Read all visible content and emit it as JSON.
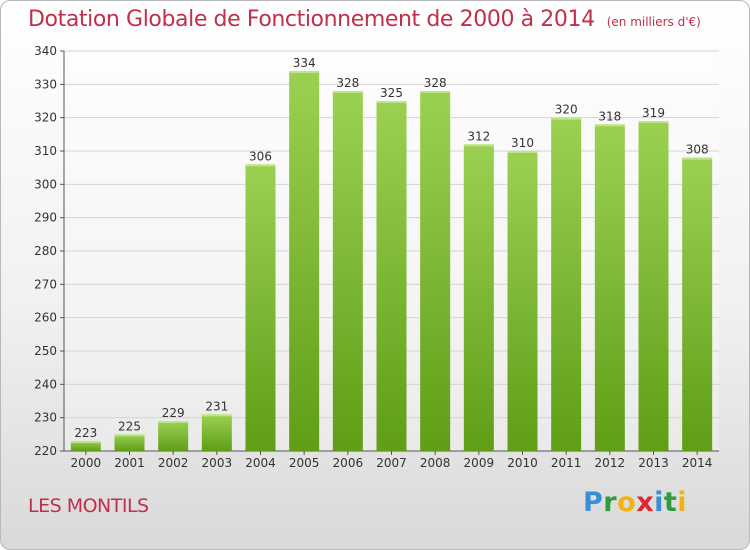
{
  "title": "Dotation Globale de Fonctionnement de 2000 à 2014",
  "unit": "(en milliers d'€)",
  "location": "LES MONTILS",
  "brand": {
    "letters": [
      {
        "ch": "P",
        "color": "#3a8ed6"
      },
      {
        "ch": "r",
        "color": "#2e9c3c"
      },
      {
        "ch": "o",
        "color": "#f2b20f"
      },
      {
        "ch": "x",
        "color": "#e0262e"
      },
      {
        "ch": "i",
        "color": "#3a8ed6"
      },
      {
        "ch": "t",
        "color": "#2e9c3c"
      },
      {
        "ch": "i",
        "color": "#f2b20f"
      }
    ]
  },
  "colors": {
    "bar_top": "#9bd152",
    "bar_bottom": "#5f9e16",
    "title": "#c0304a",
    "grid": "#d4d4d4"
  },
  "chart_data": {
    "type": "bar",
    "categories": [
      "2000",
      "2001",
      "2002",
      "2003",
      "2004",
      "2005",
      "2006",
      "2007",
      "2008",
      "2009",
      "2010",
      "2011",
      "2012",
      "2013",
      "2014"
    ],
    "values": [
      223,
      225,
      229,
      231,
      306,
      334,
      328,
      325,
      328,
      312,
      310,
      320,
      318,
      319,
      308
    ],
    "ylim": [
      220,
      340
    ],
    "yticks": [
      220,
      230,
      240,
      250,
      260,
      270,
      280,
      290,
      300,
      310,
      320,
      330,
      340
    ],
    "grid": true,
    "xlabel": "",
    "ylabel": ""
  }
}
